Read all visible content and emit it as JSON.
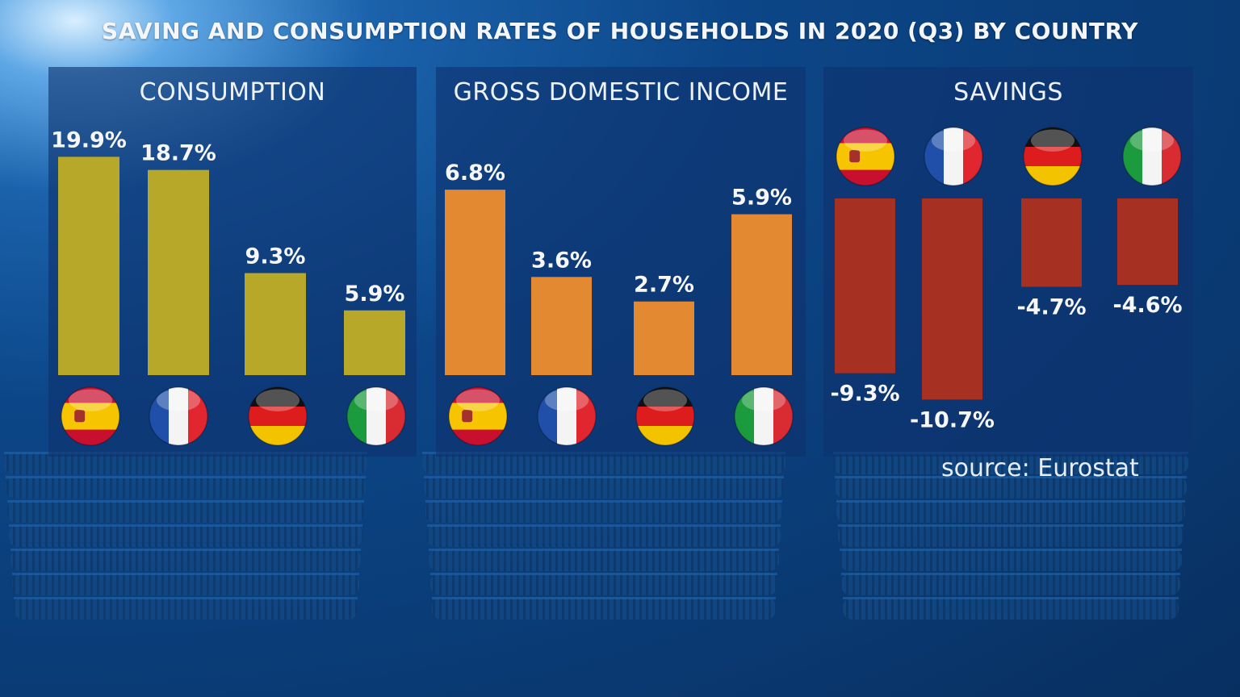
{
  "title": "SAVING AND CONSUMPTION RATES OF HOUSEHOLDS IN 2020 (Q3) BY COUNTRY",
  "source": "source: Eurostat",
  "colors": {
    "consumption": "#b8a82a",
    "gdi": "#e28932",
    "savings": "#a63122"
  },
  "countries": [
    "Spain",
    "France",
    "Germany",
    "Italy"
  ],
  "chart_data": [
    {
      "type": "bar",
      "title": "CONSUMPTION",
      "categories": [
        "Spain",
        "France",
        "Germany",
        "Italy"
      ],
      "values": [
        19.9,
        18.7,
        9.3,
        5.9
      ],
      "labels": [
        "19.9%",
        "18.7%",
        "9.3%",
        "5.9%"
      ]
    },
    {
      "type": "bar",
      "title": "GROSS DOMESTIC INCOME",
      "categories": [
        "Spain",
        "France",
        "Germany",
        "Italy"
      ],
      "values": [
        6.8,
        3.6,
        2.7,
        5.9
      ],
      "labels": [
        "6.8%",
        "3.6%",
        "2.7%",
        "5.9%"
      ]
    },
    {
      "type": "bar",
      "title": "SAVINGS",
      "categories": [
        "Spain",
        "France",
        "Germany",
        "Italy"
      ],
      "values": [
        -9.3,
        -10.7,
        -4.7,
        -4.6
      ],
      "labels": [
        "-9.3%",
        "-10.7%",
        "-4.7%",
        "-4.6%"
      ]
    }
  ]
}
